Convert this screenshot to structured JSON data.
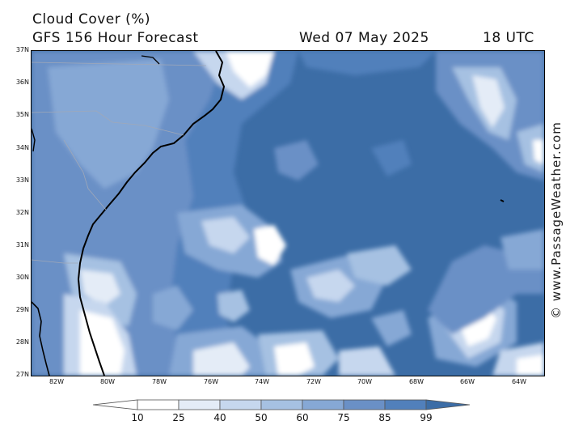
{
  "header": {
    "title": "Cloud Cover (%)",
    "model": "GFS 156 Hour Forecast",
    "date": "Wed 07 May 2025",
    "time": "18 UTC"
  },
  "map": {
    "lat_labels": [
      "37N",
      "36N",
      "35N",
      "34N",
      "33N",
      "32N",
      "31N",
      "30N",
      "29N",
      "28N",
      "27N"
    ],
    "lon_labels": [
      "82W",
      "80W",
      "78W",
      "76W",
      "74W",
      "72W",
      "70W",
      "68W",
      "66W",
      "64W"
    ],
    "background_color": "#3c6da6",
    "coast_color": "#000000",
    "border_color": "#a0a8b8"
  },
  "legend": {
    "ticks": [
      "10",
      "25",
      "40",
      "50",
      "60",
      "75",
      "85",
      "99"
    ],
    "colors": [
      "#ffffff",
      "#e4ecf7",
      "#c6d7ee",
      "#a6c1e2",
      "#86a8d5",
      "#6a90c6",
      "#5180bb",
      "#3c6da6"
    ]
  },
  "credit": "© www.PassageWeather.com"
}
